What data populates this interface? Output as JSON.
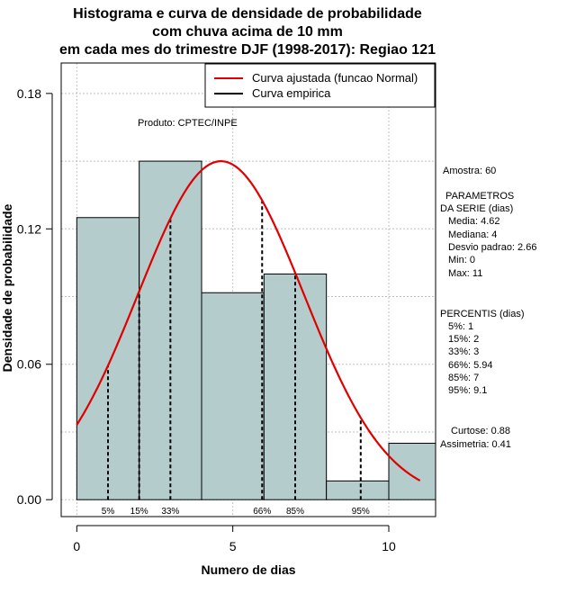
{
  "chart_data": {
    "type": "histogram",
    "title": [
      "Histograma e curva de densidade de probabilidade",
      "com chuva acima de 10 mm",
      "em cada mes do trimestre DJF (1998-2017): Regiao 121"
    ],
    "xlabel": "Numero de dias",
    "ylabel": "Densidade de probabilidade",
    "xlim": [
      -0.5,
      11.5
    ],
    "ylim": [
      -0.0075,
      0.1935
    ],
    "xticks": [
      0,
      5,
      10
    ],
    "yticks": [
      0.0,
      0.06,
      0.12,
      0.18
    ],
    "ytick_labels": [
      "0.00",
      "0.06",
      "0.12",
      "0.18"
    ],
    "bins": [
      {
        "from": 0,
        "to": 2,
        "density": 0.125
      },
      {
        "from": 2,
        "to": 4,
        "density": 0.15
      },
      {
        "from": 4,
        "to": 6,
        "density": 0.0917
      },
      {
        "from": 6,
        "to": 8,
        "density": 0.1
      },
      {
        "from": 8,
        "to": 10,
        "density": 0.0083
      },
      {
        "from": 10,
        "to": 12,
        "density": 0.025
      }
    ],
    "bar_color": "#b4cccc",
    "normal_fit": {
      "mean": 4.62,
      "sd": 2.66,
      "x_range": [
        0,
        11
      ],
      "color": "#e00000"
    },
    "percentiles": [
      {
        "label": "5%",
        "x": 1
      },
      {
        "label": "15%",
        "x": 2
      },
      {
        "label": "33%",
        "x": 3
      },
      {
        "label": "66%",
        "x": 5.94
      },
      {
        "label": "85%",
        "x": 7
      },
      {
        "label": "95%",
        "x": 9.1
      }
    ],
    "grid": true,
    "legend": {
      "position": "top-right",
      "entries": [
        {
          "label": "Curva ajustada (funcao Normal)",
          "color": "#e00000"
        },
        {
          "label": "Curva empirica",
          "color": "#000000"
        }
      ]
    },
    "annotation": "Produto: CPTEC/INPE"
  },
  "side_panel": {
    "sample": "Amostra: 60",
    "params_header": [
      " PARAMETROS",
      "DA SERIE (dias)"
    ],
    "params": [
      "Media: 4.62",
      "Mediana: 4",
      "Desvio padrao: 2.66",
      "Min: 0",
      "Max: 11"
    ],
    "percentis_header": "PERCENTIS (dias)",
    "percentis": [
      "5%: 1",
      "15%: 2",
      "33%: 3",
      "66%: 5.94",
      "85%: 7",
      "95%: 9.1"
    ],
    "curtose": "Curtose: 0.88",
    "assimetria": "Assimetria: 0.41"
  }
}
